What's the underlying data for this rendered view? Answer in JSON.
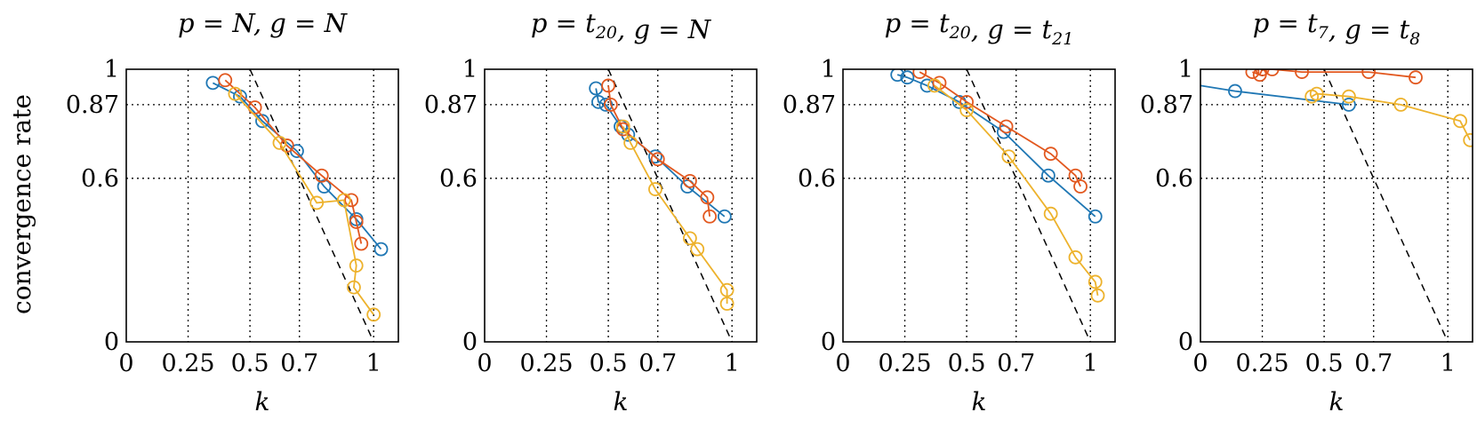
{
  "colors": {
    "blue": "#1f77b4",
    "red": "#e2581f",
    "yellow": "#edb22c",
    "reference": "#000000"
  },
  "ylabel": "convergence rate",
  "chart_data": [
    {
      "type": "line",
      "title": "p = N, g = N",
      "xlabel": "k",
      "xlim": [
        0,
        1.1
      ],
      "ylim": [
        0,
        1
      ],
      "x_ticks": [
        0,
        0.25,
        0.5,
        0.7,
        1
      ],
      "x_tick_labels": [
        "0",
        "0.25",
        "0.5",
        "0.7",
        "1"
      ],
      "y_ticks": [
        0,
        0.6,
        0.87,
        1
      ],
      "y_tick_labels": [
        "0",
        "0.6",
        "0.87",
        "1"
      ],
      "grid": "dotted at ticks",
      "reference_line": [
        [
          0.5,
          1
        ],
        [
          1,
          0
        ]
      ],
      "series": [
        {
          "color": "blue",
          "points": [
            [
              0.35,
              0.95
            ],
            [
              0.46,
              0.9
            ],
            [
              0.55,
              0.81
            ],
            [
              0.69,
              0.7
            ],
            [
              0.8,
              0.57
            ],
            [
              0.93,
              0.45
            ],
            [
              1.03,
              0.34
            ]
          ]
        },
        {
          "color": "red",
          "points": [
            [
              0.4,
              0.96
            ],
            [
              0.52,
              0.86
            ],
            [
              0.65,
              0.72
            ],
            [
              0.79,
              0.61
            ],
            [
              0.91,
              0.52
            ],
            [
              0.93,
              0.44
            ],
            [
              0.95,
              0.36
            ]
          ]
        },
        {
          "color": "yellow",
          "points": [
            [
              0.44,
              0.91
            ],
            [
              0.62,
              0.73
            ],
            [
              0.77,
              0.51
            ],
            [
              0.88,
              0.52
            ],
            [
              0.93,
              0.28
            ],
            [
              0.92,
              0.2
            ],
            [
              1.0,
              0.1
            ]
          ]
        }
      ]
    },
    {
      "type": "line",
      "title": "p = t20, g = N",
      "xlabel": "k",
      "xlim": [
        0,
        1.1
      ],
      "ylim": [
        0,
        1
      ],
      "x_ticks": [
        0,
        0.25,
        0.5,
        0.7,
        1
      ],
      "x_tick_labels": [
        "0",
        "0.25",
        "0.5",
        "0.7",
        "1"
      ],
      "y_ticks": [
        0,
        0.6,
        0.87,
        1
      ],
      "y_tick_labels": [
        "0",
        "0.6",
        "0.87",
        "1"
      ],
      "grid": "dotted at ticks",
      "reference_line": [
        [
          0.5,
          1
        ],
        [
          1,
          0
        ]
      ],
      "series": [
        {
          "color": "blue",
          "points": [
            [
              0.45,
              0.93
            ],
            [
              0.46,
              0.88
            ],
            [
              0.49,
              0.87
            ],
            [
              0.55,
              0.79
            ],
            [
              0.58,
              0.76
            ],
            [
              0.69,
              0.68
            ],
            [
              0.82,
              0.57
            ],
            [
              0.97,
              0.46
            ]
          ]
        },
        {
          "color": "red",
          "points": [
            [
              0.5,
              0.94
            ],
            [
              0.51,
              0.87
            ],
            [
              0.56,
              0.78
            ],
            [
              0.7,
              0.67
            ],
            [
              0.83,
              0.59
            ],
            [
              0.9,
              0.53
            ],
            [
              0.91,
              0.46
            ]
          ]
        },
        {
          "color": "yellow",
          "points": [
            [
              0.56,
              0.79
            ],
            [
              0.59,
              0.73
            ],
            [
              0.69,
              0.56
            ],
            [
              0.83,
              0.38
            ],
            [
              0.86,
              0.34
            ],
            [
              0.98,
              0.19
            ],
            [
              0.98,
              0.14
            ]
          ]
        }
      ]
    },
    {
      "type": "line",
      "title": "p = t20, g = t21",
      "xlabel": "k",
      "xlim": [
        0,
        1.1
      ],
      "ylim": [
        0,
        1
      ],
      "x_ticks": [
        0,
        0.25,
        0.5,
        0.7,
        1
      ],
      "x_tick_labels": [
        "0",
        "0.25",
        "0.5",
        "0.7",
        "1"
      ],
      "y_ticks": [
        0,
        0.6,
        0.87,
        1
      ],
      "y_tick_labels": [
        "0",
        "0.6",
        "0.87",
        "1"
      ],
      "grid": "dotted at ticks",
      "reference_line": [
        [
          0.5,
          1
        ],
        [
          1,
          0
        ]
      ],
      "series": [
        {
          "color": "blue",
          "points": [
            [
              0.22,
              0.98
            ],
            [
              0.26,
              0.97
            ],
            [
              0.34,
              0.94
            ],
            [
              0.47,
              0.88
            ],
            [
              0.65,
              0.77
            ],
            [
              0.83,
              0.61
            ],
            [
              1.02,
              0.46
            ]
          ]
        },
        {
          "color": "red",
          "points": [
            [
              0.31,
              0.99
            ],
            [
              0.39,
              0.95
            ],
            [
              0.5,
              0.88
            ],
            [
              0.66,
              0.79
            ],
            [
              0.84,
              0.69
            ],
            [
              0.94,
              0.61
            ],
            [
              0.96,
              0.57
            ]
          ]
        },
        {
          "color": "yellow",
          "points": [
            [
              0.37,
              0.94
            ],
            [
              0.5,
              0.85
            ],
            [
              0.67,
              0.68
            ],
            [
              0.84,
              0.47
            ],
            [
              0.94,
              0.31
            ],
            [
              1.02,
              0.22
            ],
            [
              1.03,
              0.17
            ]
          ]
        }
      ]
    },
    {
      "type": "line",
      "title": "p = t7, g = t8",
      "xlabel": "k",
      "xlim": [
        0,
        1.1
      ],
      "ylim": [
        0,
        1
      ],
      "x_ticks": [
        0,
        0.25,
        0.5,
        0.7,
        1
      ],
      "x_tick_labels": [
        "0",
        "0.25",
        "0.5",
        "0.7",
        "1"
      ],
      "y_ticks": [
        0,
        0.6,
        0.87,
        1
      ],
      "y_tick_labels": [
        "0",
        "0.6",
        "0.87",
        "1"
      ],
      "grid": "dotted at ticks",
      "reference_line": [
        [
          0.5,
          1
        ],
        [
          1,
          0
        ]
      ],
      "series": [
        {
          "color": "blue",
          "points": [
            [
              0.0,
              0.94
            ],
            [
              0.14,
              0.92
            ],
            [
              0.6,
              0.87
            ]
          ],
          "line_from_x": 0
        },
        {
          "color": "red",
          "points": [
            [
              0.21,
              0.99
            ],
            [
              0.24,
              0.98
            ],
            [
              0.25,
              1.0
            ],
            [
              0.29,
              1.0
            ],
            [
              0.41,
              0.99
            ],
            [
              0.68,
              0.99
            ],
            [
              0.87,
              0.97
            ]
          ]
        },
        {
          "color": "yellow",
          "points": [
            [
              0.45,
              0.9
            ],
            [
              0.47,
              0.91
            ],
            [
              0.6,
              0.9
            ],
            [
              0.81,
              0.87
            ],
            [
              1.05,
              0.81
            ],
            [
              1.09,
              0.74
            ]
          ]
        }
      ]
    }
  ]
}
